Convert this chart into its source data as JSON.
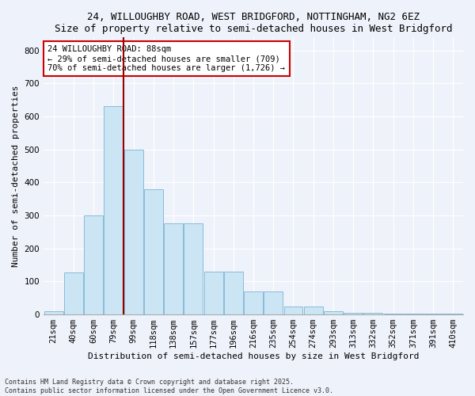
{
  "title1": "24, WILLOUGHBY ROAD, WEST BRIDGFORD, NOTTINGHAM, NG2 6EZ",
  "title2": "Size of property relative to semi-detached houses in West Bridgford",
  "xlabel": "Distribution of semi-detached houses by size in West Bridgford",
  "ylabel": "Number of semi-detached properties",
  "bar_labels": [
    "21sqm",
    "40sqm",
    "60sqm",
    "79sqm",
    "99sqm",
    "118sqm",
    "138sqm",
    "157sqm",
    "177sqm",
    "196sqm",
    "216sqm",
    "235sqm",
    "254sqm",
    "274sqm",
    "293sqm",
    "313sqm",
    "332sqm",
    "352sqm",
    "371sqm",
    "391sqm",
    "410sqm"
  ],
  "bar_values": [
    10,
    128,
    300,
    630,
    500,
    380,
    275,
    275,
    130,
    130,
    70,
    70,
    25,
    25,
    10,
    5,
    5,
    3,
    3,
    2,
    2
  ],
  "bar_color": "#cce5f5",
  "bar_edge_color": "#88bcd8",
  "vline_color": "#990000",
  "annotation_title": "24 WILLOUGHBY ROAD: 88sqm",
  "annotation_line1": "← 29% of semi-detached houses are smaller (709)",
  "annotation_line2": "70% of semi-detached houses are larger (1,726) →",
  "annotation_box_color": "#ffffff",
  "annotation_box_edge": "#cc0000",
  "ylim": [
    0,
    840
  ],
  "yticks": [
    0,
    100,
    200,
    300,
    400,
    500,
    600,
    700,
    800
  ],
  "footnote1": "Contains HM Land Registry data © Crown copyright and database right 2025.",
  "footnote2": "Contains public sector information licensed under the Open Government Licence v3.0.",
  "bg_color": "#eef2fa",
  "grid_color": "#ffffff",
  "title_fontsize": 9,
  "label_fontsize": 8,
  "tick_fontsize": 7.5,
  "annot_fontsize": 7.5
}
